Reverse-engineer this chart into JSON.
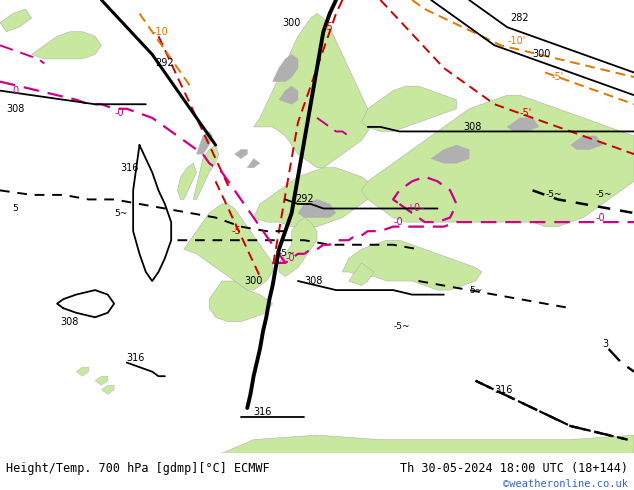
{
  "title_left": "Height/Temp. 700 hPa [gdmp][°C] ECMWF",
  "title_right": "Th 30-05-2024 18:00 UTC (18+144)",
  "watermark": "©weatheronline.co.uk",
  "sea_color": "#d8d8d8",
  "land_green": "#c8e8a0",
  "land_gray": "#b0b0b0",
  "border_color": "#808080",
  "text_color": "#000000",
  "text_color_watermark": "#3366cc",
  "font_size_title": 8.5,
  "font_size_watermark": 7.5,
  "fig_width": 6.34,
  "fig_height": 4.9,
  "black_contour_lw": 2.2,
  "thin_contour_lw": 1.3,
  "red_lw": 1.4,
  "orange_lw": 1.4,
  "magenta_lw": 1.6,
  "black_dash_lw": 1.4
}
